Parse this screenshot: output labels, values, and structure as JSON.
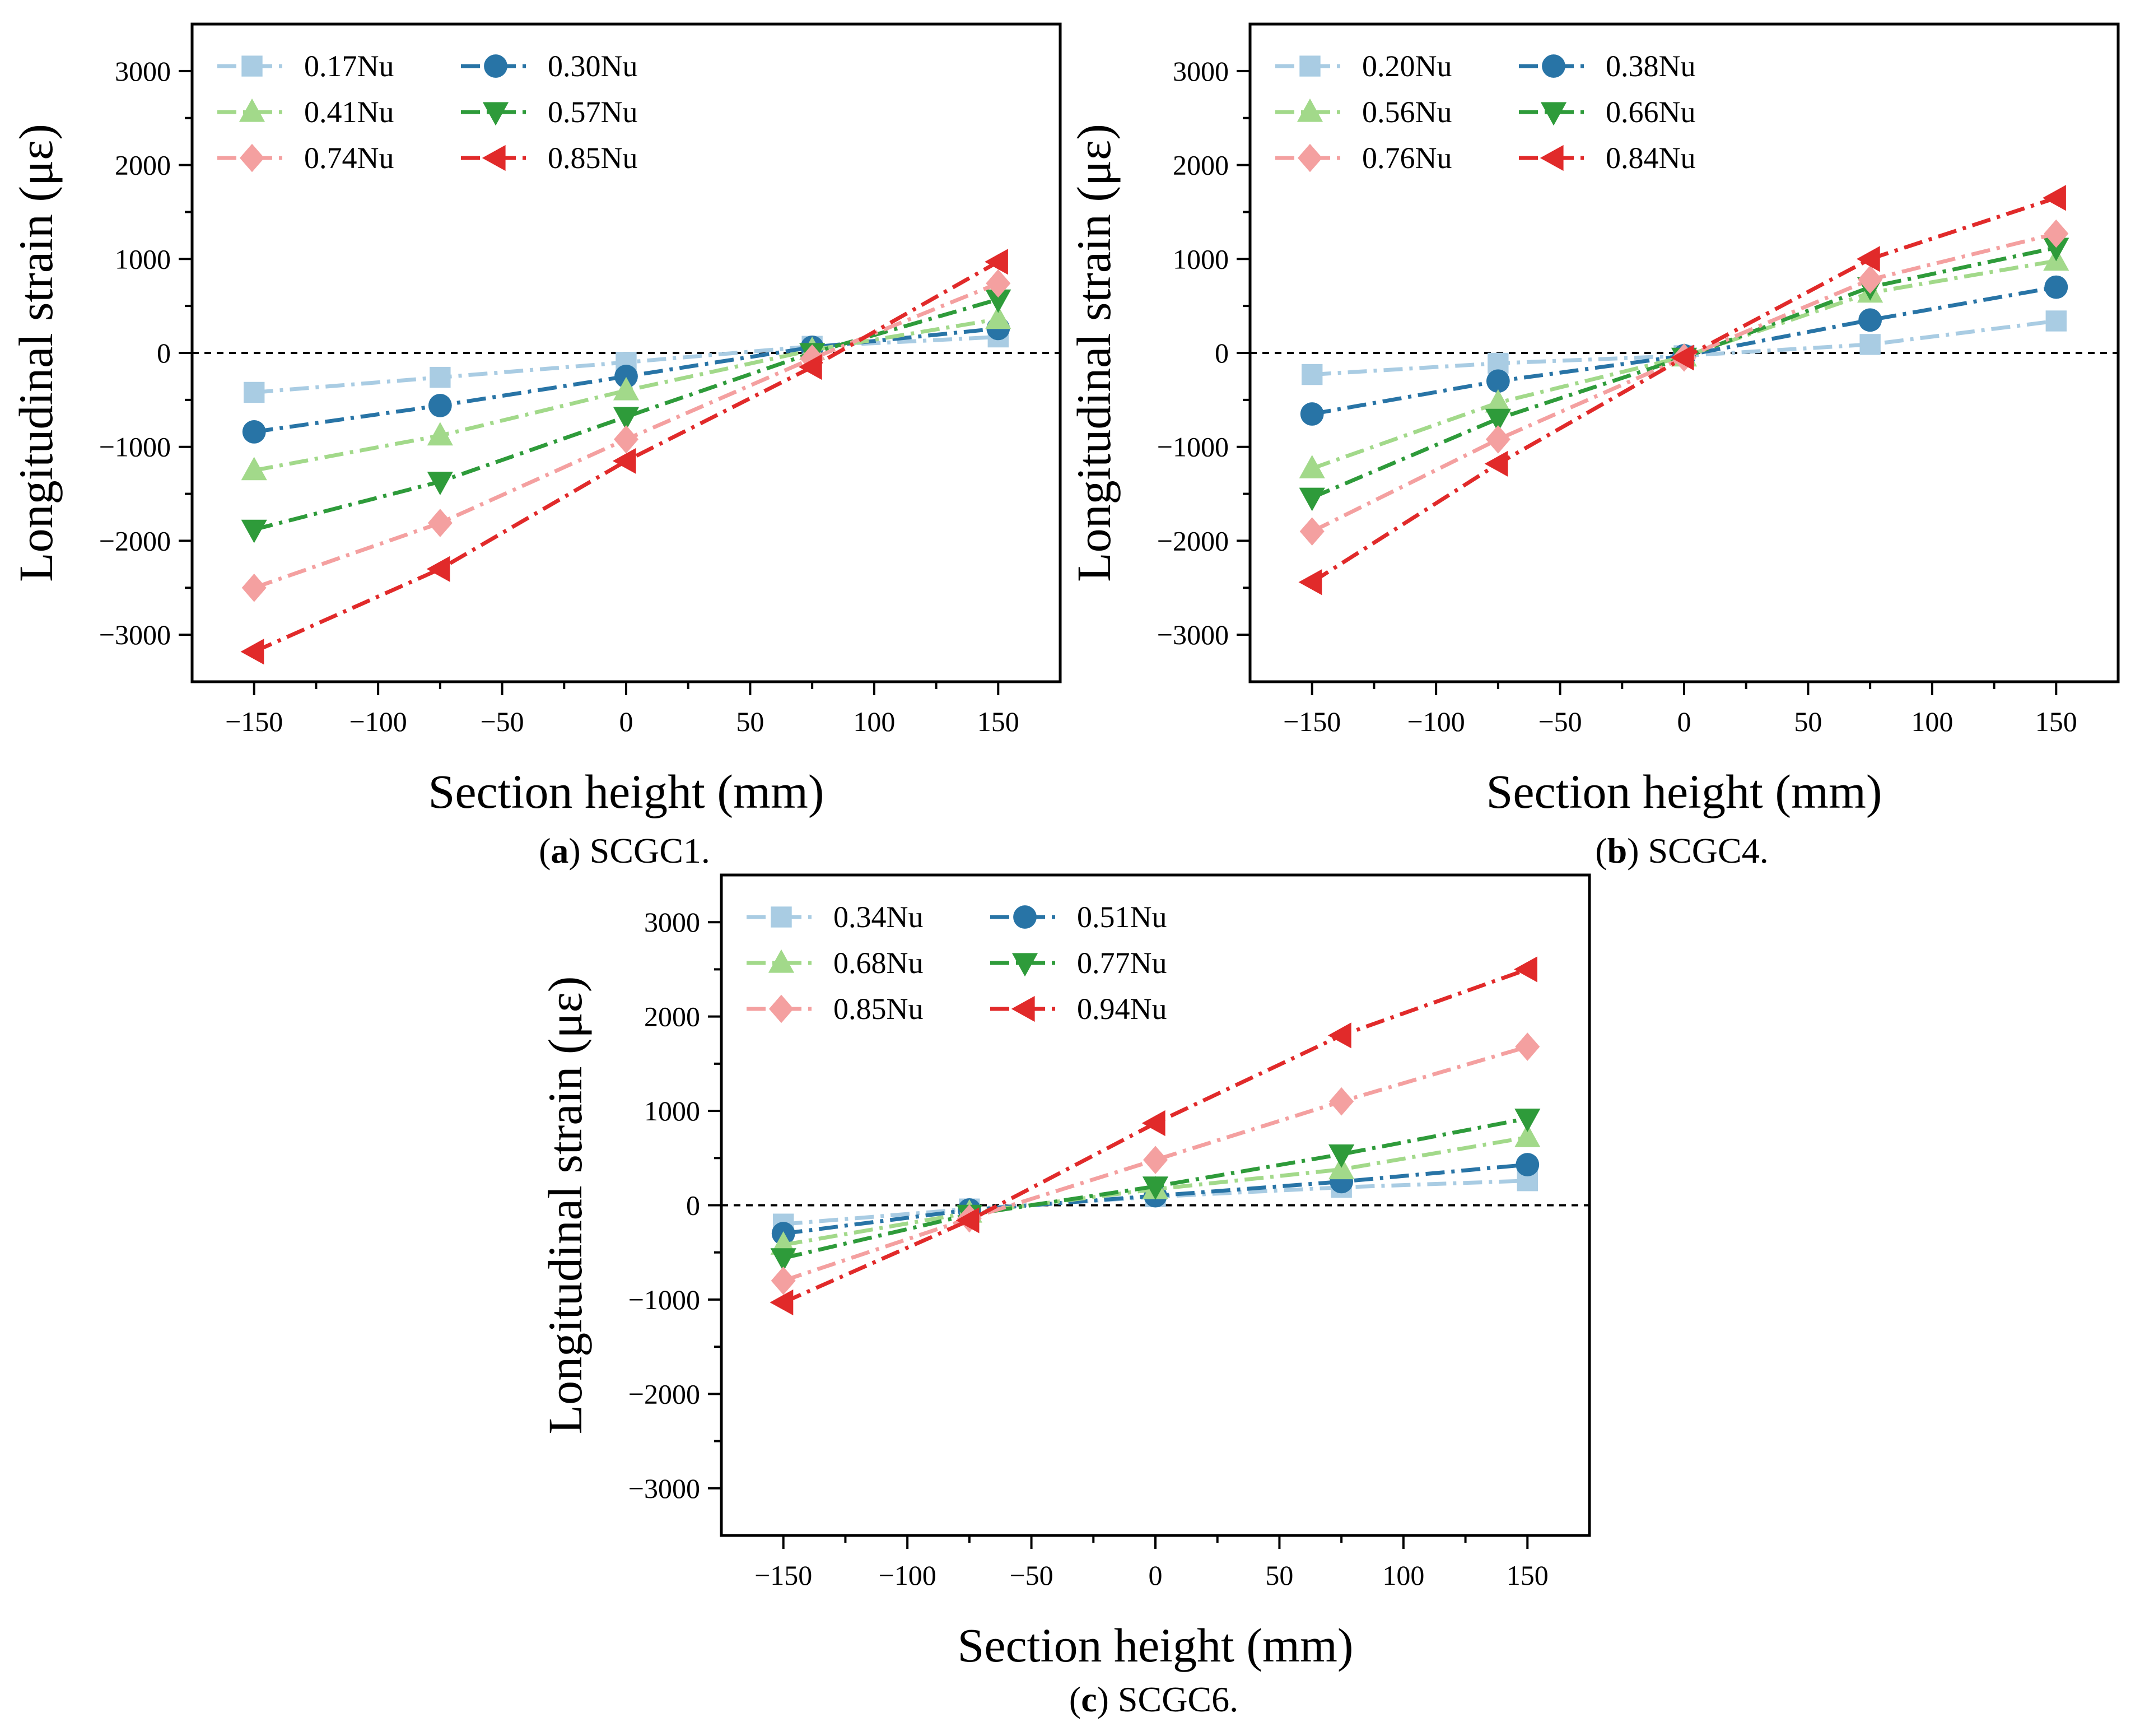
{
  "chart_data": [
    {
      "type": "line",
      "panel": "a",
      "caption_letter": "a",
      "caption_text": " SCGC1.",
      "xlabel": "Section height (mm)",
      "ylabel": "Longitudinal strain (με)",
      "xlim": [
        -175,
        175
      ],
      "ylim": [
        -3500,
        3500
      ],
      "xticks": [
        -150,
        -100,
        -50,
        0,
        50,
        100,
        150
      ],
      "xtick_labels": [
        "−150",
        "−100",
        "−50",
        "0",
        "50",
        "100",
        "150"
      ],
      "yticks": [
        -3000,
        -2000,
        -1000,
        0,
        1000,
        2000,
        3000
      ],
      "ytick_labels": [
        "−3000",
        "−2000",
        "−1000",
        "0",
        "1000",
        "2000",
        "3000"
      ],
      "reference_line_y": 0,
      "x": [
        -150,
        -75,
        0,
        75,
        150
      ],
      "series": [
        {
          "name": "0.17Nu",
          "color": "#a9cce3",
          "marker": "square",
          "values": [
            -420,
            -260,
            -100,
            70,
            170
          ]
        },
        {
          "name": "0.30Nu",
          "color": "#2874a6",
          "marker": "circle",
          "values": [
            -840,
            -560,
            -250,
            60,
            260
          ]
        },
        {
          "name": "0.41Nu",
          "color": "#a2d98a",
          "marker": "triangle-up",
          "values": [
            -1250,
            -880,
            -400,
            30,
            360
          ]
        },
        {
          "name": "0.57Nu",
          "color": "#2e9b3a",
          "marker": "triangle-down",
          "values": [
            -1880,
            -1370,
            -680,
            0,
            570
          ]
        },
        {
          "name": "0.74Nu",
          "color": "#f4a0a0",
          "marker": "diamond",
          "values": [
            -2500,
            -1810,
            -920,
            -60,
            740
          ]
        },
        {
          "name": "0.85Nu",
          "color": "#e12a2a",
          "marker": "triangle-left",
          "values": [
            -3180,
            -2300,
            -1150,
            -150,
            970
          ]
        }
      ]
    },
    {
      "type": "line",
      "panel": "b",
      "caption_letter": "b",
      "caption_text": " SCGC4.",
      "xlabel": "Section height (mm)",
      "ylabel": "Longitudinal strain (με)",
      "xlim": [
        -175,
        175
      ],
      "ylim": [
        -3500,
        3500
      ],
      "xticks": [
        -150,
        -100,
        -50,
        0,
        50,
        100,
        150
      ],
      "xtick_labels": [
        "−150",
        "−100",
        "−50",
        "0",
        "50",
        "100",
        "150"
      ],
      "yticks": [
        -3000,
        -2000,
        -1000,
        0,
        1000,
        2000,
        3000
      ],
      "ytick_labels": [
        "−3000",
        "−2000",
        "−1000",
        "0",
        "1000",
        "2000",
        "3000"
      ],
      "reference_line_y": 0,
      "x": [
        -150,
        -75,
        0,
        75,
        150
      ],
      "series": [
        {
          "name": "0.20Nu",
          "color": "#a9cce3",
          "marker": "square",
          "values": [
            -230,
            -110,
            -30,
            90,
            340
          ]
        },
        {
          "name": "0.38Nu",
          "color": "#2874a6",
          "marker": "circle",
          "values": [
            -650,
            -300,
            -30,
            350,
            700
          ]
        },
        {
          "name": "0.56Nu",
          "color": "#a2d98a",
          "marker": "triangle-up",
          "values": [
            -1230,
            -530,
            -40,
            640,
            980
          ]
        },
        {
          "name": "0.66Nu",
          "color": "#2e9b3a",
          "marker": "triangle-down",
          "values": [
            -1540,
            -700,
            -50,
            700,
            1120
          ]
        },
        {
          "name": "0.76Nu",
          "color": "#f4a0a0",
          "marker": "diamond",
          "values": [
            -1900,
            -920,
            -50,
            780,
            1270
          ]
        },
        {
          "name": "0.84Nu",
          "color": "#e12a2a",
          "marker": "triangle-left",
          "values": [
            -2440,
            -1180,
            -50,
            1000,
            1650
          ]
        }
      ]
    },
    {
      "type": "line",
      "panel": "c",
      "caption_letter": "c",
      "caption_text": " SCGC6.",
      "xlabel": "Section height (mm)",
      "ylabel": "Longitudinal strain (με)",
      "xlim": [
        -175,
        175
      ],
      "ylim": [
        -3500,
        3500
      ],
      "xticks": [
        -150,
        -100,
        -50,
        0,
        50,
        100,
        150
      ],
      "xtick_labels": [
        "−150",
        "−100",
        "−50",
        "0",
        "50",
        "100",
        "150"
      ],
      "yticks": [
        -3000,
        -2000,
        -1000,
        0,
        1000,
        2000,
        3000
      ],
      "ytick_labels": [
        "−3000",
        "−2000",
        "−1000",
        "0",
        "1000",
        "2000",
        "3000"
      ],
      "reference_line_y": 0,
      "x": [
        -150,
        -75,
        0,
        75,
        150
      ],
      "series": [
        {
          "name": "0.34Nu",
          "color": "#a9cce3",
          "marker": "square",
          "values": [
            -200,
            -40,
            90,
            190,
            260
          ]
        },
        {
          "name": "0.51Nu",
          "color": "#2874a6",
          "marker": "circle",
          "values": [
            -300,
            -50,
            100,
            250,
            430
          ]
        },
        {
          "name": "0.68Nu",
          "color": "#a2d98a",
          "marker": "triangle-up",
          "values": [
            -420,
            -80,
            170,
            380,
            720
          ]
        },
        {
          "name": "0.77Nu",
          "color": "#2e9b3a",
          "marker": "triangle-down",
          "values": [
            -560,
            -100,
            200,
            540,
            920
          ]
        },
        {
          "name": "0.85Nu",
          "color": "#f4a0a0",
          "marker": "diamond",
          "values": [
            -800,
            -140,
            480,
            1100,
            1680
          ]
        },
        {
          "name": "0.94Nu",
          "color": "#e12a2a",
          "marker": "triangle-left",
          "values": [
            -1030,
            -160,
            870,
            1800,
            2500
          ]
        }
      ]
    }
  ]
}
